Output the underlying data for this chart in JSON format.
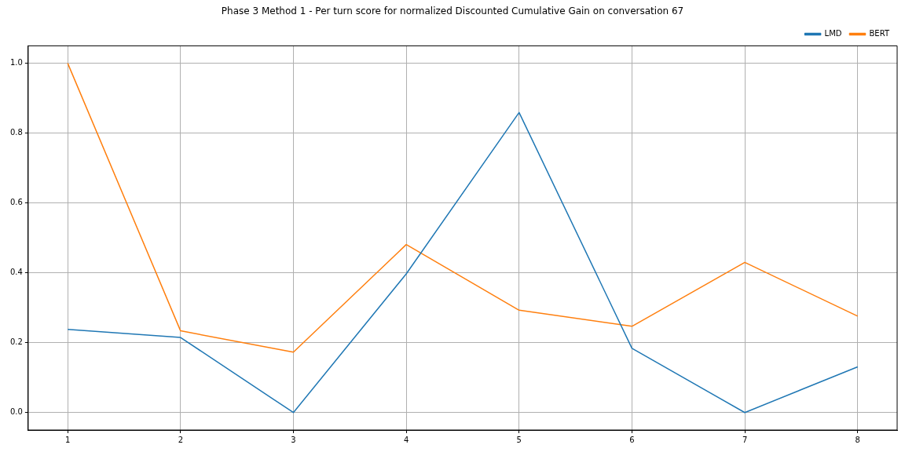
{
  "chart_data": {
    "type": "line",
    "title": "Phase 3 Method 1 - Per turn score for normalized Discounted Cumulative Gain on conversation 67",
    "x": [
      1,
      2,
      3,
      4,
      5,
      6,
      7,
      8
    ],
    "series": [
      {
        "name": "LMD",
        "color": "#1f77b4",
        "values": [
          0.238,
          0.215,
          0.0,
          0.397,
          0.859,
          0.184,
          0.0,
          0.131
        ]
      },
      {
        "name": "BERT",
        "color": "#ff7f0e",
        "values": [
          1.0,
          0.234,
          0.173,
          0.481,
          0.293,
          0.247,
          0.43,
          0.276
        ]
      }
    ],
    "xlim": [
      0.65,
      8.35
    ],
    "xticks": [
      1,
      2,
      3,
      4,
      5,
      6,
      7,
      8
    ],
    "ylim": [
      -0.05,
      1.05
    ],
    "yticks": [
      {
        "value": 0,
        "label": "0.0"
      },
      {
        "value": 0.2,
        "label": "0.2"
      },
      {
        "value": 0.4,
        "label": "0.4"
      },
      {
        "value": 0.6,
        "label": "0.6"
      },
      {
        "value": 0.8,
        "label": "0.8"
      },
      {
        "value": 1,
        "label": "1.0"
      }
    ],
    "grid": true,
    "legend": "top right",
    "marker": "none",
    "line_style": "solid"
  }
}
